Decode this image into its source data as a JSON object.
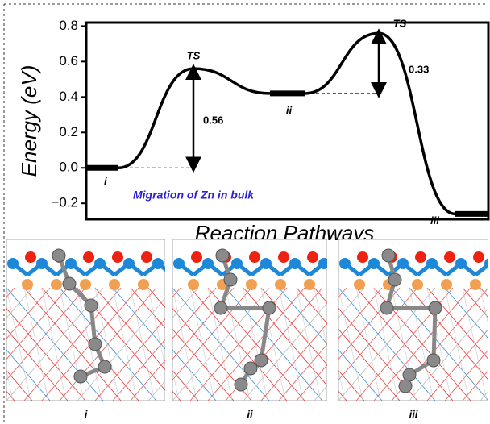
{
  "chart_data": {
    "type": "line",
    "y_label": "Energy (eV)",
    "x_label": "Reaction Pathways",
    "categories": [
      "i",
      "TS",
      "ii",
      "TS",
      "iii"
    ],
    "values": [
      0,
      0.56,
      0.42,
      0.76,
      -0.26
    ],
    "color": "#000000",
    "ylim": [
      -0.29,
      0.82
    ],
    "yticks": [
      {
        "value": -0.2,
        "label": "−0.2"
      },
      {
        "value": 0,
        "label": "0.0"
      },
      0.2,
      0.4,
      0.6,
      0.8
    ],
    "annotations": [
      "0.56",
      "0.33",
      "Migration of Zn in bulk"
    ]
  },
  "panel_labels": [
    "i",
    "ii",
    "iii"
  ]
}
